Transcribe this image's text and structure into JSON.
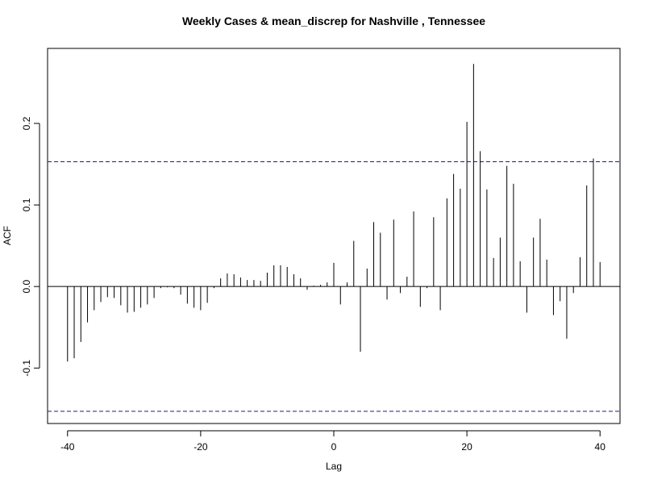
{
  "chart_data": {
    "type": "bar",
    "title": "Weekly Cases & mean_discrep for Nashville , Tennessee",
    "xlabel": "Lag",
    "ylabel": "ACF",
    "xlim": [
      -43,
      43
    ],
    "ylim": [
      -0.168,
      0.292
    ],
    "x_ticks": [
      -40,
      -20,
      0,
      20,
      40
    ],
    "x_tick_labels": [
      "-40",
      "-20",
      "0",
      "20",
      "40"
    ],
    "y_ticks": [
      -0.1,
      0.0,
      0.1,
      0.2
    ],
    "y_tick_labels": [
      "-0.1",
      "0.0",
      "0.1",
      "0.2"
    ],
    "confidence_band": [
      -0.153,
      0.153
    ],
    "lags": [
      -40,
      -39,
      -38,
      -37,
      -36,
      -35,
      -34,
      -33,
      -32,
      -31,
      -30,
      -29,
      -28,
      -27,
      -26,
      -25,
      -24,
      -23,
      -22,
      -21,
      -20,
      -19,
      -18,
      -17,
      -16,
      -15,
      -14,
      -13,
      -12,
      -11,
      -10,
      -9,
      -8,
      -7,
      -6,
      -5,
      -4,
      -3,
      -2,
      -1,
      0,
      1,
      2,
      3,
      4,
      5,
      6,
      7,
      8,
      9,
      10,
      11,
      12,
      13,
      14,
      15,
      16,
      17,
      18,
      19,
      20,
      21,
      22,
      23,
      24,
      25,
      26,
      27,
      28,
      29,
      30,
      31,
      32,
      33,
      34,
      35,
      36,
      37,
      38,
      39,
      40
    ],
    "values": [
      -0.092,
      -0.088,
      -0.068,
      -0.044,
      -0.029,
      -0.019,
      -0.013,
      -0.014,
      -0.023,
      -0.032,
      -0.031,
      -0.026,
      -0.022,
      -0.014,
      -0.002,
      -0.001,
      -0.002,
      -0.01,
      -0.021,
      -0.026,
      -0.029,
      -0.02,
      -0.002,
      0.01,
      0.016,
      0.015,
      0.011,
      0.008,
      0.008,
      0.007,
      0.017,
      0.026,
      0.026,
      0.024,
      0.015,
      0.01,
      -0.004,
      0.001,
      0.002,
      0.005,
      0.029,
      -0.022,
      0.005,
      0.056,
      -0.08,
      0.022,
      0.079,
      0.066,
      -0.016,
      0.082,
      -0.008,
      0.012,
      0.092,
      -0.025,
      -0.002,
      0.085,
      -0.029,
      0.108,
      0.138,
      0.12,
      0.202,
      0.273,
      0.166,
      0.119,
      0.035,
      0.06,
      0.148,
      0.126,
      0.031,
      -0.032,
      0.06,
      0.083,
      0.033,
      -0.035,
      -0.018,
      -0.064,
      -0.008,
      0.036,
      0.124,
      0.157,
      0.03
    ]
  }
}
